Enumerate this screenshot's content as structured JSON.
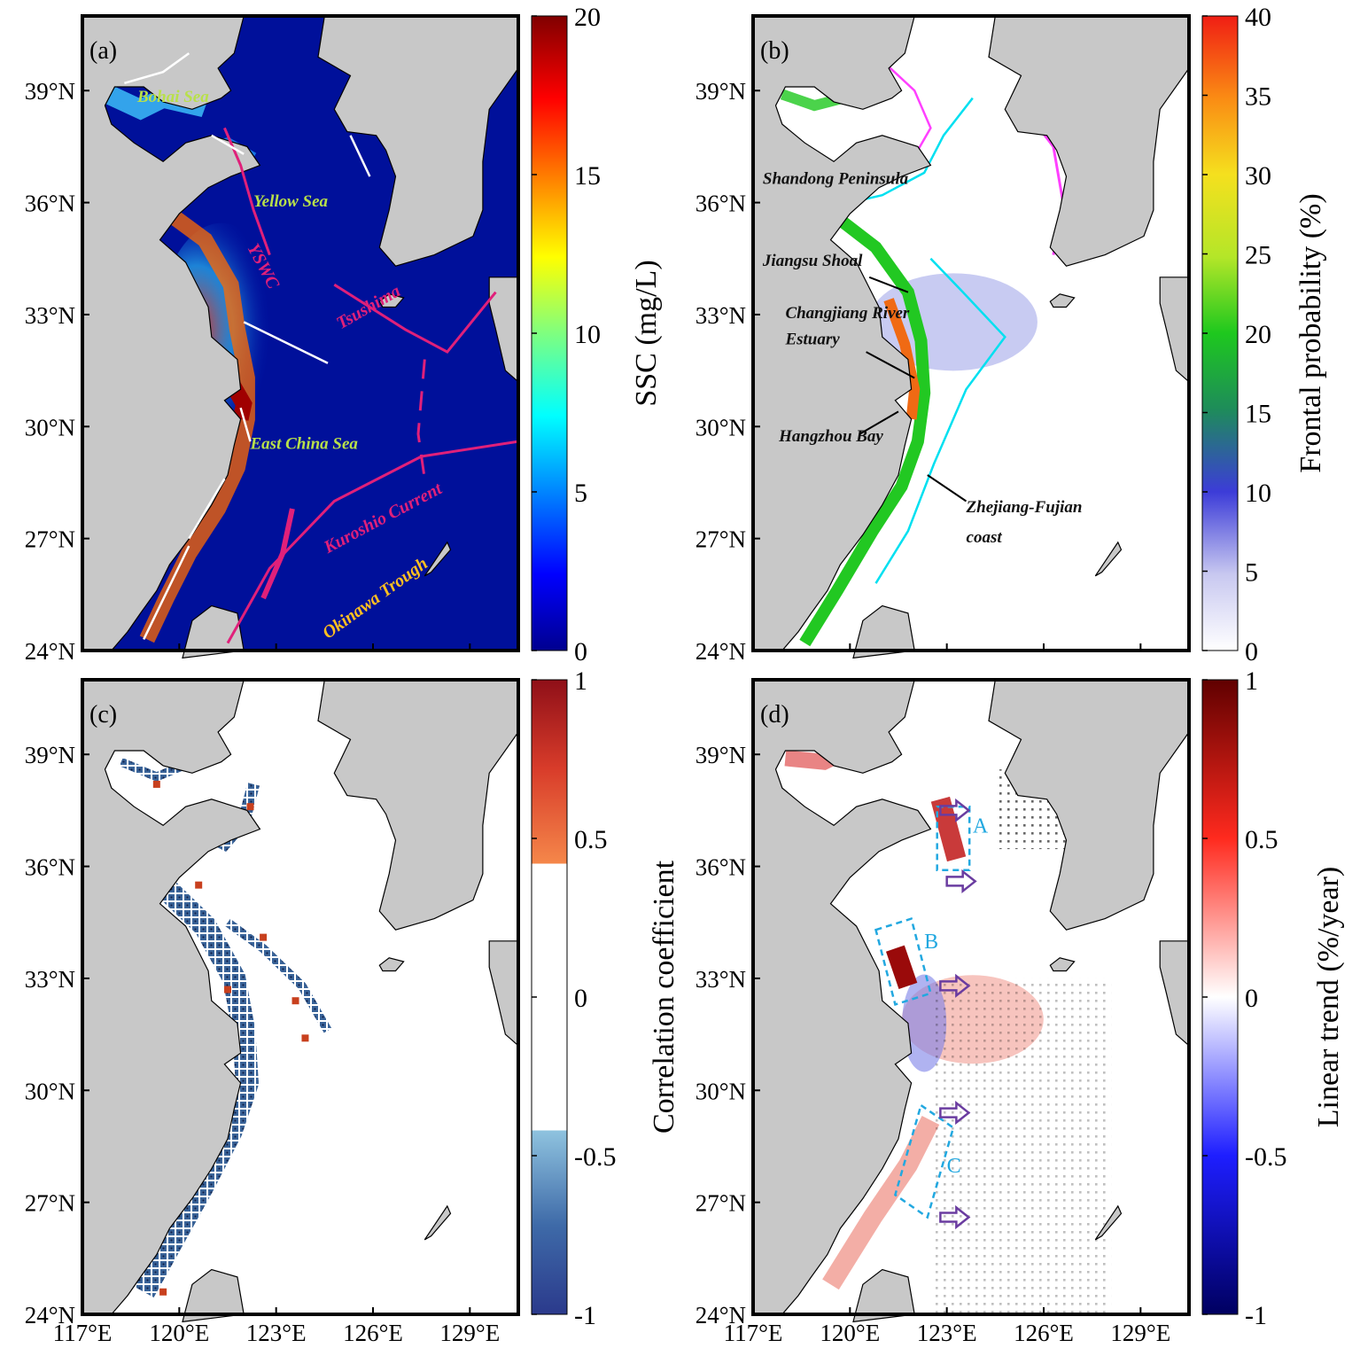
{
  "figure": {
    "lat_ticks": [
      "24°N",
      "27°N",
      "30°N",
      "33°N",
      "36°N",
      "39°N"
    ],
    "lon_ticks": [
      "117°E",
      "120°E",
      "123°E",
      "126°E",
      "129°E"
    ],
    "lat_range": [
      24,
      41
    ],
    "lon_range": [
      117,
      130.5
    ],
    "land_color": "#c8c8c8",
    "coast_color": "#000000"
  },
  "panels": {
    "a": {
      "label": "(a)",
      "colorbar_label": "SSC (mg/L)",
      "colorbar_ticks": [
        "0",
        "5",
        "10",
        "15",
        "20"
      ],
      "colormap": "jet",
      "range": [
        0,
        20
      ],
      "annotations": {
        "bohai": "Bohai Sea",
        "yellow": "Yellow Sea",
        "ecs": "East China Sea",
        "yswc": "YSWC",
        "tsushima": "Tsushima",
        "kuroshio": "Kuroshio Current",
        "okinawa": "Okinawa Trough"
      }
    },
    "b": {
      "label": "(b)",
      "colorbar_label": "Frontal probability (%)",
      "colorbar_ticks": [
        "0",
        "5",
        "10",
        "15",
        "20",
        "25",
        "30",
        "35",
        "40"
      ],
      "range": [
        0,
        40
      ],
      "annotations": {
        "shandong": "Shandong Peninsula",
        "jiangsu": "Jiangsu Shoal",
        "cje1": "Changjiang River",
        "cje2": "Estuary",
        "hangzhou": "Hangzhou Bay",
        "zf1": "Zhejiang-Fujian",
        "zf2": "coast"
      }
    },
    "c": {
      "label": "(c)",
      "colorbar_label": "Correlation coefficient",
      "colorbar_ticks": [
        "-1",
        "-0.5",
        "0",
        "0.5",
        "1"
      ],
      "range": [
        -1,
        1
      ]
    },
    "d": {
      "label": "(d)",
      "colorbar_label": "Linear trend (%/year)",
      "colorbar_ticks": [
        "-1",
        "-0.5",
        "0",
        "0.5",
        "1"
      ],
      "range": [
        -1,
        1
      ],
      "boxes": [
        "A",
        "B",
        "C"
      ]
    }
  }
}
